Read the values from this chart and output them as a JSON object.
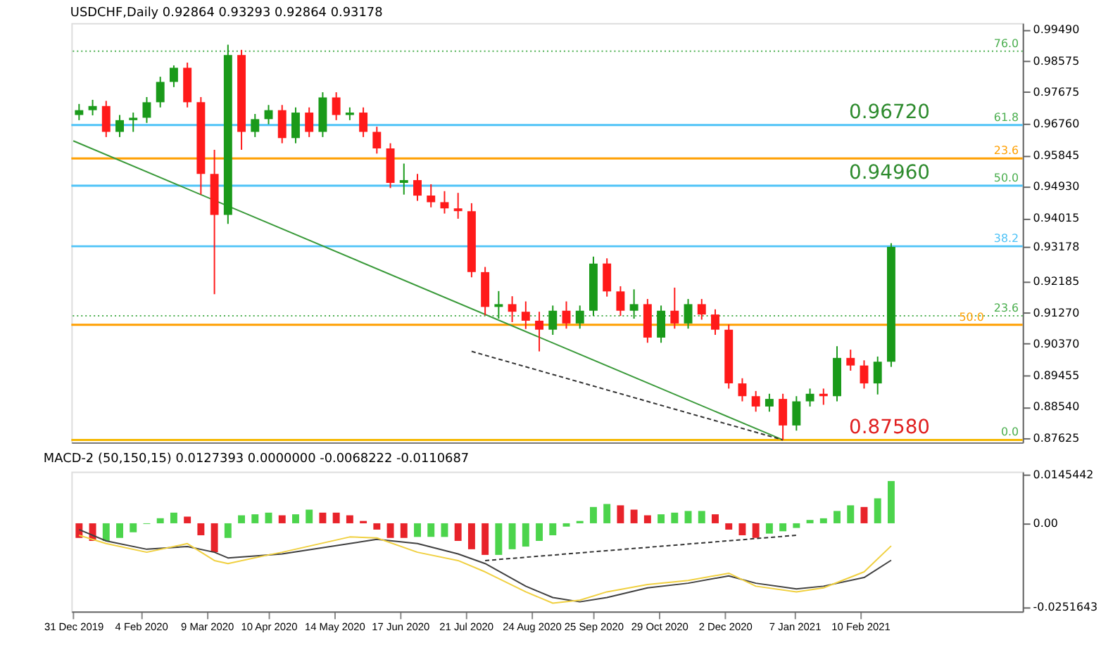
{
  "chart_data": [
    {
      "type": "candlestick",
      "title": "USDCHF,Daily  0.92864 0.93293 0.92864 0.93178",
      "x": [
        "2020-01-03",
        "2020-01-10",
        "2020-01-17",
        "2020-01-24",
        "2020-01-31",
        "2020-02-07",
        "2020-02-14",
        "2020-02-21",
        "2020-02-28",
        "2020-03-06",
        "2020-03-13",
        "2020-03-20",
        "2020-03-27",
        "2020-04-03",
        "2020-04-10",
        "2020-04-17",
        "2020-04-24",
        "2020-05-01",
        "2020-05-08",
        "2020-05-15",
        "2020-05-22",
        "2020-05-29",
        "2020-06-05",
        "2020-06-12",
        "2020-06-19",
        "2020-06-26",
        "2020-07-03",
        "2020-07-10",
        "2020-07-17",
        "2020-07-24",
        "2020-07-31",
        "2020-08-07",
        "2020-08-14",
        "2020-08-21",
        "2020-08-28",
        "2020-09-04",
        "2020-09-11",
        "2020-09-18",
        "2020-09-25",
        "2020-10-02",
        "2020-10-09",
        "2020-10-16",
        "2020-10-23",
        "2020-10-30",
        "2020-11-06",
        "2020-11-13",
        "2020-11-20",
        "2020-11-27",
        "2020-12-04",
        "2020-12-11",
        "2020-12-18",
        "2020-12-25",
        "2021-01-01",
        "2021-01-08",
        "2021-01-15",
        "2021-01-22",
        "2021-01-29",
        "2021-02-05",
        "2021-02-12",
        "2021-02-19",
        "2021-02-26"
      ],
      "ohlc": [
        [
          0.9701,
          0.9733,
          0.9686,
          0.9715
        ],
        [
          0.9715,
          0.9745,
          0.97,
          0.9727
        ],
        [
          0.9727,
          0.9742,
          0.9637,
          0.9652
        ],
        [
          0.9652,
          0.9701,
          0.9637,
          0.9686
        ],
        [
          0.9686,
          0.9708,
          0.9652,
          0.9693
        ],
        [
          0.9693,
          0.9753,
          0.9678,
          0.9738
        ],
        [
          0.9738,
          0.9812,
          0.9723,
          0.9797
        ],
        [
          0.9797,
          0.9845,
          0.9782,
          0.9838
        ],
        [
          0.9838,
          0.9853,
          0.9723,
          0.9738
        ],
        [
          0.9738,
          0.9753,
          0.947,
          0.953
        ],
        [
          0.953,
          0.96,
          0.9181,
          0.9411
        ],
        [
          0.9411,
          0.9905,
          0.9385,
          0.9875
        ],
        [
          0.9875,
          0.989,
          0.96,
          0.9652
        ],
        [
          0.9652,
          0.9704,
          0.9637,
          0.9689
        ],
        [
          0.9689,
          0.973,
          0.9674,
          0.9715
        ],
        [
          0.9715,
          0.973,
          0.9619,
          0.9634
        ],
        [
          0.9634,
          0.9723,
          0.9619,
          0.9708
        ],
        [
          0.9708,
          0.9723,
          0.9637,
          0.9652
        ],
        [
          0.9652,
          0.9767,
          0.9637,
          0.9752
        ],
        [
          0.9752,
          0.9767,
          0.9686,
          0.9701
        ],
        [
          0.9701,
          0.9723,
          0.9686,
          0.9708
        ],
        [
          0.9708,
          0.9723,
          0.9637,
          0.9652
        ],
        [
          0.9652,
          0.9667,
          0.9589,
          0.9604
        ],
        [
          0.9604,
          0.9619,
          0.9489,
          0.9504
        ],
        [
          0.9504,
          0.956,
          0.947,
          0.9512
        ],
        [
          0.9512,
          0.953,
          0.9452,
          0.9467
        ],
        [
          0.9467,
          0.95,
          0.9433,
          0.9448
        ],
        [
          0.9448,
          0.948,
          0.9415,
          0.943
        ],
        [
          0.943,
          0.9475,
          0.94,
          0.9422
        ],
        [
          0.9422,
          0.9445,
          0.923,
          0.9245
        ],
        [
          0.9245,
          0.926,
          0.912,
          0.9144
        ],
        [
          0.9144,
          0.919,
          0.911,
          0.9152
        ],
        [
          0.9152,
          0.9175,
          0.91,
          0.913
        ],
        [
          0.913,
          0.916,
          0.908,
          0.9104
        ],
        [
          0.9104,
          0.913,
          0.9015,
          0.9078
        ],
        [
          0.9078,
          0.9148,
          0.9063,
          0.9133
        ],
        [
          0.9133,
          0.916,
          0.9081,
          0.9096
        ],
        [
          0.9096,
          0.9148,
          0.9081,
          0.9133
        ],
        [
          0.9133,
          0.929,
          0.9118,
          0.927
        ],
        [
          0.927,
          0.9285,
          0.9174,
          0.9189
        ],
        [
          0.9189,
          0.9204,
          0.9118,
          0.9133
        ],
        [
          0.9133,
          0.9195,
          0.911,
          0.9152
        ],
        [
          0.9152,
          0.9167,
          0.904,
          0.9055
        ],
        [
          0.9055,
          0.9148,
          0.904,
          0.9133
        ],
        [
          0.9133,
          0.92,
          0.9081,
          0.9096
        ],
        [
          0.9096,
          0.9167,
          0.9081,
          0.9152
        ],
        [
          0.9152,
          0.9167,
          0.9107,
          0.9122
        ],
        [
          0.9122,
          0.9137,
          0.9063,
          0.9078
        ],
        [
          0.9078,
          0.9093,
          0.8907,
          0.8922
        ],
        [
          0.8922,
          0.8937,
          0.887,
          0.8885
        ],
        [
          0.8885,
          0.89,
          0.884,
          0.8855
        ],
        [
          0.8855,
          0.8892,
          0.884,
          0.8877
        ],
        [
          0.8877,
          0.8892,
          0.8758,
          0.88
        ],
        [
          0.88,
          0.8885,
          0.8785,
          0.887
        ],
        [
          0.887,
          0.8907,
          0.8855,
          0.8892
        ],
        [
          0.8892,
          0.8907,
          0.886,
          0.8885
        ],
        [
          0.8885,
          0.903,
          0.887,
          0.8996
        ],
        [
          0.8996,
          0.902,
          0.8959,
          0.8974
        ],
        [
          0.8974,
          0.8989,
          0.8907,
          0.8922
        ],
        [
          0.8922,
          0.9,
          0.889,
          0.8985
        ],
        [
          0.8985,
          0.9329,
          0.897,
          0.9318
        ]
      ],
      "colors": [
        "#1a9a1a",
        "#1a9a1a",
        "#ff1a1a",
        "#1a9a1a",
        "#1a9a1a",
        "#1a9a1a",
        "#1a9a1a",
        "#1a9a1a",
        "#ff1a1a",
        "#ff1a1a",
        "#ff1a1a",
        "#1a9a1a",
        "#ff1a1a",
        "#1a9a1a",
        "#1a9a1a",
        "#ff1a1a",
        "#1a9a1a",
        "#ff1a1a",
        "#1a9a1a",
        "#ff1a1a",
        "#1a9a1a",
        "#ff1a1a",
        "#ff1a1a",
        "#ff1a1a",
        "#1a9a1a",
        "#ff1a1a",
        "#ff1a1a",
        "#ff1a1a",
        "#ff1a1a",
        "#ff1a1a",
        "#ff1a1a",
        "#1a9a1a",
        "#ff1a1a",
        "#ff1a1a",
        "#ff1a1a",
        "#1a9a1a",
        "#ff1a1a",
        "#1a9a1a",
        "#1a9a1a",
        "#ff1a1a",
        "#ff1a1a",
        "#1a9a1a",
        "#ff1a1a",
        "#1a9a1a",
        "#ff1a1a",
        "#1a9a1a",
        "#ff1a1a",
        "#ff1a1a",
        "#ff1a1a",
        "#ff1a1a",
        "#ff1a1a",
        "#1a9a1a",
        "#ff1a1a",
        "#1a9a1a",
        "#1a9a1a",
        "#ff1a1a",
        "#1a9a1a",
        "#ff1a1a",
        "#ff1a1a",
        "#1a9a1a",
        "#1a9a1a"
      ],
      "series": [
        {
          "type": "line",
          "x": [
            "2019-12-31",
            "2021-01-01"
          ],
          "values": [
            0.9626,
            0.8758
          ],
          "color": "#3a9a3a",
          "line_style": "solid"
        },
        {
          "type": "line",
          "x": [
            "2020-07-24",
            "2021-01-01"
          ],
          "values": [
            0.9015,
            0.8758
          ],
          "color": "#333333",
          "line_style": "dashed"
        }
      ],
      "ref_lines": [
        {
          "axis": "y",
          "value": 0.9886,
          "color": "#4caf50",
          "line_style": "dotted"
        },
        {
          "axis": "y",
          "value": 0.9672,
          "label": "0.96720",
          "color": "#4fc3f7",
          "line_style": "solid"
        },
        {
          "axis": "y",
          "value": 0.9575,
          "color": "#ff9f00",
          "line_style": "solid"
        },
        {
          "axis": "y",
          "value": 0.9496,
          "label": "0.94960",
          "color": "#4fc3f7",
          "line_style": "solid"
        },
        {
          "axis": "y",
          "value": 0.932,
          "color": "#4fc3f7",
          "line_style": "solid"
        },
        {
          "axis": "y",
          "value": 0.9118,
          "color": "#4caf50",
          "line_style": "dotted"
        },
        {
          "axis": "y",
          "value": 0.9092,
          "color": "#ff9f00",
          "line_style": "solid"
        },
        {
          "axis": "y",
          "value": 0.8758,
          "label": "0.87580",
          "color": "#f5b800",
          "line_style": "solid"
        }
      ],
      "annotations": [
        {
          "text": "76.0",
          "x": "2021-05-03",
          "y": 0.9886
        },
        {
          "text": "61.8",
          "x": "2021-05-03",
          "y": 0.9672
        },
        {
          "text": "23.6",
          "x": "2021-05-03",
          "y": 0.9575
        },
        {
          "text": "50.0",
          "x": "2021-05-03",
          "y": 0.9496
        },
        {
          "text": "38.2",
          "x": "2021-05-03",
          "y": 0.932
        },
        {
          "text": "23.6",
          "x": "2021-05-03",
          "y": 0.9118
        },
        {
          "text": "50.0",
          "x": "2021-04-15",
          "y": 0.9092
        },
        {
          "text": "0.0",
          "x": "2021-05-03",
          "y": 0.8758
        }
      ],
      "xlim": [
        "2019-12-30",
        "2021-05-05"
      ],
      "ylim": [
        0.8751,
        0.9968
      ],
      "yticks": [
        {
          "value": 0.9949,
          "label": "0.99490"
        },
        {
          "value": 0.98575,
          "label": "0.98575"
        },
        {
          "value": 0.97675,
          "label": "0.97675"
        },
        {
          "value": 0.9676,
          "label": "0.96760"
        },
        {
          "value": 0.95845,
          "label": "0.95845"
        },
        {
          "value": 0.9493,
          "label": "0.94930"
        },
        {
          "value": 0.94015,
          "label": "0.94015"
        },
        {
          "value": 0.93178,
          "label": "0.93178"
        },
        {
          "value": 0.92185,
          "label": "0.92185"
        },
        {
          "value": 0.9127,
          "label": "0.91270"
        },
        {
          "value": 0.9037,
          "label": "0.90370"
        },
        {
          "value": 0.89455,
          "label": "0.89455"
        },
        {
          "value": 0.8854,
          "label": "0.88540"
        },
        {
          "value": 0.87625,
          "label": "0.87625"
        }
      ],
      "tick_labels": "y"
    },
    {
      "type": "bar",
      "title": "MACD-2 (50,150,15) 0.0127393 0.0000000 -0.0068222 -0.0110687",
      "x": [
        "2020-01-03",
        "2020-01-10",
        "2020-01-17",
        "2020-01-24",
        "2020-01-31",
        "2020-02-07",
        "2020-02-14",
        "2020-02-21",
        "2020-02-28",
        "2020-03-06",
        "2020-03-13",
        "2020-03-20",
        "2020-03-27",
        "2020-04-03",
        "2020-04-10",
        "2020-04-17",
        "2020-04-24",
        "2020-05-01",
        "2020-05-08",
        "2020-05-15",
        "2020-05-22",
        "2020-05-29",
        "2020-06-05",
        "2020-06-12",
        "2020-06-19",
        "2020-06-26",
        "2020-07-03",
        "2020-07-10",
        "2020-07-17",
        "2020-07-24",
        "2020-07-31",
        "2020-08-07",
        "2020-08-14",
        "2020-08-21",
        "2020-08-28",
        "2020-09-04",
        "2020-09-11",
        "2020-09-18",
        "2020-09-25",
        "2020-10-02",
        "2020-10-09",
        "2020-10-16",
        "2020-10-23",
        "2020-10-30",
        "2020-11-06",
        "2020-11-13",
        "2020-11-20",
        "2020-11-27",
        "2020-12-04",
        "2020-12-11",
        "2020-12-18",
        "2020-12-25",
        "2021-01-01",
        "2021-01-08",
        "2021-01-15",
        "2021-01-22",
        "2021-01-29",
        "2021-02-05",
        "2021-02-12",
        "2021-02-19",
        "2021-02-26"
      ],
      "series": [
        {
          "values": [
            -0.0044,
            -0.0053,
            -0.0053,
            -0.0044,
            -0.0027,
            -0.0002,
            0.0015,
            0.0032,
            0.002,
            -0.0036,
            -0.0087,
            -0.0044,
            0.0024,
            0.0027,
            0.0032,
            0.0024,
            0.0027,
            0.0041,
            0.0032,
            0.0032,
            0.0024,
            0.0007,
            -0.0019,
            -0.0044,
            -0.0044,
            -0.0041,
            -0.0041,
            -0.0041,
            -0.0053,
            -0.0078,
            -0.0095,
            -0.0095,
            -0.0078,
            -0.007,
            -0.0053,
            -0.0036,
            -0.001,
            0.0007,
            0.0049,
            0.0058,
            0.0054,
            0.0041,
            0.0024,
            0.0027,
            0.0032,
            0.0037,
            0.0037,
            0.0027,
            -0.0019,
            -0.0036,
            -0.0044,
            -0.0031,
            -0.0024,
            -0.0014,
            0.001,
            0.0015,
            0.0037,
            0.0054,
            0.0049,
            0.0075,
            0.0127
          ],
          "colors": [
            "#e8232a",
            "#e8232a",
            "#4cd44c",
            "#4cd44c",
            "#4cd44c",
            "#4cd44c",
            "#4cd44c",
            "#4cd44c",
            "#e8232a",
            "#e8232a",
            "#e8232a",
            "#4cd44c",
            "#4cd44c",
            "#4cd44c",
            "#4cd44c",
            "#e8232a",
            "#4cd44c",
            "#4cd44c",
            "#e8232a",
            "#e8232a",
            "#e8232a",
            "#e8232a",
            "#e8232a",
            "#e8232a",
            "#e8232a",
            "#4cd44c",
            "#4cd44c",
            "#4cd44c",
            "#e8232a",
            "#e8232a",
            "#e8232a",
            "#4cd44c",
            "#4cd44c",
            "#4cd44c",
            "#4cd44c",
            "#4cd44c",
            "#4cd44c",
            "#4cd44c",
            "#4cd44c",
            "#4cd44c",
            "#e8232a",
            "#e8232a",
            "#e8232a",
            "#4cd44c",
            "#4cd44c",
            "#4cd44c",
            "#4cd44c",
            "#e8232a",
            "#e8232a",
            "#e8232a",
            "#e8232a",
            "#4cd44c",
            "#4cd44c",
            "#4cd44c",
            "#4cd44c",
            "#4cd44c",
            "#4cd44c",
            "#4cd44c",
            "#e8232a",
            "#4cd44c",
            "#4cd44c"
          ]
        },
        {
          "type": "line",
          "color": "#404040",
          "line_style": "solid",
          "x": [
            "2020-01-03",
            "2020-01-17",
            "2020-02-07",
            "2020-02-28",
            "2020-03-13",
            "2020-03-20",
            "2020-04-10",
            "2020-04-17",
            "2020-05-22",
            "2020-06-05",
            "2020-06-26",
            "2020-07-17",
            "2020-07-31",
            "2020-08-21",
            "2020-09-04",
            "2020-09-18",
            "2020-10-02",
            "2020-10-23",
            "2020-11-13",
            "2020-12-04",
            "2020-12-18",
            "2021-01-08",
            "2021-01-22",
            "2021-02-12",
            "2021-02-26"
          ],
          "values": [
            -0.0019,
            -0.0053,
            -0.0078,
            -0.007,
            -0.0087,
            -0.0104,
            -0.0095,
            -0.0092,
            -0.0061,
            -0.0048,
            -0.0061,
            -0.0092,
            -0.0121,
            -0.0189,
            -0.0223,
            -0.0236,
            -0.0223,
            -0.0194,
            -0.018,
            -0.0158,
            -0.018,
            -0.0197,
            -0.0189,
            -0.0163,
            -0.0111
          ]
        },
        {
          "type": "line",
          "color": "#f0d040",
          "line_style": "solid",
          "x": [
            "2020-01-03",
            "2020-01-17",
            "2020-02-07",
            "2020-02-28",
            "2020-03-13",
            "2020-03-20",
            "2020-04-10",
            "2020-04-17",
            "2020-05-22",
            "2020-06-05",
            "2020-06-26",
            "2020-07-17",
            "2020-07-31",
            "2020-08-21",
            "2020-09-04",
            "2020-09-18",
            "2020-10-02",
            "2020-10-23",
            "2020-11-13",
            "2020-12-04",
            "2020-12-18",
            "2021-01-08",
            "2021-01-22",
            "2021-02-12",
            "2021-02-26"
          ],
          "values": [
            -0.0036,
            -0.0061,
            -0.0087,
            -0.0061,
            -0.0112,
            -0.0121,
            -0.0095,
            -0.0087,
            -0.0041,
            -0.0044,
            -0.0087,
            -0.0112,
            -0.0146,
            -0.0206,
            -0.024,
            -0.0231,
            -0.0206,
            -0.0184,
            -0.0172,
            -0.015,
            -0.0189,
            -0.0206,
            -0.0194,
            -0.0146,
            -0.0068
          ]
        },
        {
          "type": "line",
          "color": "#333333",
          "line_style": "dashed",
          "x": [
            "2020-07-31",
            "2021-01-08"
          ],
          "values": [
            -0.0112,
            -0.0036
          ]
        }
      ],
      "xlim": [
        "2019-12-30",
        "2021-05-05"
      ],
      "xticks": [
        {
          "value": "2019-12-31",
          "label": "31 Dec 2019"
        },
        {
          "value": "2020-02-04",
          "label": "4 Feb 2020"
        },
        {
          "value": "2020-03-09",
          "label": "9 Mar 2020"
        },
        {
          "value": "2020-04-10",
          "label": "10 Apr 2020"
        },
        {
          "value": "2020-05-14",
          "label": "14 May 2020"
        },
        {
          "value": "2020-06-17",
          "label": "17 Jun 2020"
        },
        {
          "value": "2020-07-21",
          "label": "21 Jul 2020"
        },
        {
          "value": "2020-08-24",
          "label": "24 Aug 2020"
        },
        {
          "value": "2020-09-25",
          "label": "25 Sep 2020"
        },
        {
          "value": "2020-10-29",
          "label": "29 Oct 2020"
        },
        {
          "value": "2020-12-02",
          "label": "2 Dec 2020"
        },
        {
          "value": "2021-01-07",
          "label": "7 Jan 2021"
        },
        {
          "value": "2021-02-10",
          "label": "10 Feb 2021"
        }
      ],
      "ylim": [
        -0.0265,
        0.0155
      ],
      "yticks": [
        0.0145442,
        {
          "value": 0,
          "label": "0.00"
        },
        -0.0251643
      ]
    }
  ]
}
